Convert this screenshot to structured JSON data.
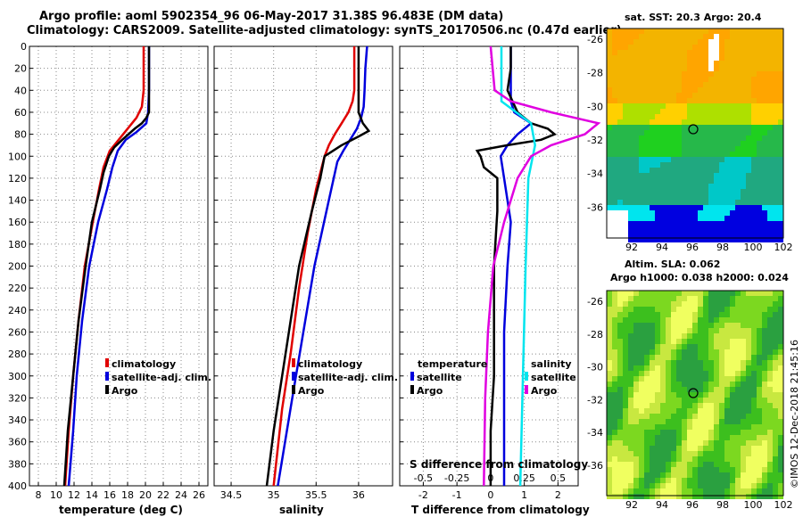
{
  "header": {
    "title_line1": "Argo profile: aoml 5902354_96 06-May-2017 31.38S 96.483E (DM data)",
    "title_line2": "Climatology: CARS2009. Satellite-adjusted climatology: synTS_20170506.nc (0.47d earlier)"
  },
  "colors": {
    "climatology": "#e00000",
    "satellite": "#0000dd",
    "argo": "#000000",
    "sat_cyan": "#00e5ee",
    "argo_magenta": "#e000e0"
  },
  "chart_data": [
    {
      "id": "temperature",
      "type": "line",
      "xlabel": "temperature (deg C)",
      "ylabel": "",
      "xlim": [
        7,
        27
      ],
      "ylim": [
        400,
        0
      ],
      "xticks": [
        8,
        10,
        12,
        14,
        16,
        18,
        20,
        22,
        24,
        26
      ],
      "xtick_labels": [
        "8",
        "10",
        "12",
        "14",
        "16",
        "18",
        "20",
        "22",
        "24",
        "26"
      ],
      "yticks": [
        0,
        20,
        40,
        60,
        80,
        100,
        120,
        140,
        160,
        180,
        200,
        220,
        240,
        260,
        280,
        300,
        320,
        340,
        360,
        380,
        400
      ],
      "ytick_labels": [
        "0",
        "20",
        "40",
        "60",
        "80",
        "100",
        "120",
        "140",
        "160",
        "180",
        "200",
        "220",
        "240",
        "260",
        "280",
        "300",
        "320",
        "340",
        "360",
        "380",
        "400"
      ],
      "grid": true,
      "legend": [
        "climatology",
        "satellite-adj. clim.",
        "Argo"
      ],
      "legend_placement": "lower-right",
      "series": [
        {
          "name": "climatology",
          "depth": [
            0,
            20,
            40,
            55,
            65,
            75,
            85,
            95,
            110,
            130,
            160,
            200,
            250,
            300,
            350,
            400
          ],
          "values": [
            19.8,
            19.8,
            19.8,
            19.6,
            19.0,
            18.0,
            17.0,
            16.0,
            15.3,
            14.8,
            14.1,
            13.2,
            12.5,
            11.9,
            11.4,
            11.0
          ]
        },
        {
          "name": "satellite-adj. clim.",
          "depth": [
            0,
            20,
            40,
            60,
            70,
            78,
            85,
            95,
            110,
            130,
            160,
            200,
            250,
            300,
            350,
            400
          ],
          "values": [
            20.4,
            20.4,
            20.4,
            20.3,
            20.1,
            19.0,
            17.8,
            16.9,
            16.3,
            15.7,
            14.7,
            13.7,
            12.9,
            12.3,
            11.9,
            11.4
          ]
        },
        {
          "name": "Argo",
          "depth": [
            0,
            20,
            40,
            60,
            65,
            70,
            75,
            85,
            92,
            100,
            115,
            130,
            160,
            200,
            250,
            300,
            350,
            400
          ],
          "values": [
            20.4,
            20.4,
            20.4,
            20.4,
            20.1,
            19.6,
            18.8,
            17.4,
            16.5,
            15.9,
            15.3,
            14.9,
            14.0,
            13.3,
            12.5,
            11.9,
            11.3,
            10.9
          ]
        }
      ]
    },
    {
      "id": "salinity",
      "type": "line",
      "xlabel": "salinity",
      "xlim": [
        34.3,
        36.4
      ],
      "ylim": [
        400,
        0
      ],
      "xticks": [
        34.5,
        35,
        35.5,
        36
      ],
      "xtick_labels": [
        "34.5",
        "35",
        "35.5",
        "36"
      ],
      "grid": true,
      "legend": [
        "climatology",
        "satellite-adj. clim.",
        "Argo"
      ],
      "legend_placement": "lower-right",
      "series": [
        {
          "name": "climatology",
          "depth": [
            0,
            20,
            40,
            50,
            60,
            70,
            80,
            90,
            100,
            130,
            170,
            220,
            280,
            330,
            400
          ],
          "values": [
            35.95,
            35.95,
            35.95,
            35.93,
            35.88,
            35.8,
            35.72,
            35.65,
            35.6,
            35.5,
            35.4,
            35.3,
            35.2,
            35.1,
            35.0
          ]
        },
        {
          "name": "satellite-adj. clim.",
          "depth": [
            0,
            20,
            40,
            55,
            65,
            75,
            85,
            95,
            105,
            140,
            200,
            260,
            320,
            400
          ],
          "values": [
            36.1,
            36.08,
            36.07,
            36.06,
            36.03,
            35.98,
            35.9,
            35.82,
            35.75,
            35.65,
            35.48,
            35.35,
            35.22,
            35.05
          ]
        },
        {
          "name": "Argo",
          "depth": [
            0,
            20,
            40,
            60,
            70,
            77,
            82,
            90,
            100,
            120,
            150,
            200,
            250,
            300,
            350,
            400
          ],
          "values": [
            36.0,
            36.0,
            36.0,
            36.0,
            36.05,
            36.12,
            36.0,
            35.8,
            35.6,
            35.55,
            35.45,
            35.3,
            35.2,
            35.1,
            35.0,
            34.92
          ]
        }
      ]
    },
    {
      "id": "difference",
      "type": "line",
      "xlabel": "T difference from climatology",
      "xlabel_top": "S difference from climatology",
      "xlim": [
        -2.7,
        2.6
      ],
      "ylim": [
        400,
        0
      ],
      "xticks": [
        -2,
        -1,
        0,
        1,
        2
      ],
      "xtick_labels": [
        "-2",
        "-1",
        "0",
        "1",
        "2"
      ],
      "xticks_top": [
        -0.5,
        -0.25,
        0,
        0.25,
        0.5
      ],
      "xtick_labels_top": [
        "-0.5",
        "-0.25",
        "0",
        "0.25",
        "0.5"
      ],
      "grid": true,
      "legend_left_title": "temperature",
      "legend_right_title": "salinity",
      "legend_left": [
        "satellite",
        "Argo"
      ],
      "legend_right": [
        "satellite",
        "Argo"
      ],
      "series": [
        {
          "name": "temperature satellite",
          "depth": [
            0,
            50,
            60,
            70,
            80,
            90,
            100,
            120,
            160,
            200,
            260,
            320,
            400
          ],
          "values": [
            0.6,
            0.6,
            0.7,
            1.2,
            0.8,
            0.5,
            0.3,
            0.4,
            0.6,
            0.5,
            0.4,
            0.4,
            0.4
          ]
        },
        {
          "name": "temperature Argo",
          "depth": [
            0,
            20,
            40,
            60,
            70,
            75,
            80,
            85,
            90,
            95,
            100,
            110,
            120,
            150,
            200,
            250,
            300,
            350,
            400
          ],
          "values": [
            0.6,
            0.6,
            0.5,
            0.8,
            1.2,
            1.7,
            1.9,
            1.5,
            0.5,
            -0.4,
            -0.3,
            -0.2,
            0.2,
            0.2,
            0.1,
            0.1,
            0.1,
            0.0,
            0.0
          ]
        },
        {
          "name": "salinity satellite",
          "depth": [
            0,
            50,
            70,
            90,
            120,
            200,
            300,
            400
          ],
          "values": [
            0.08,
            0.08,
            0.3,
            0.33,
            0.28,
            0.26,
            0.24,
            0.22
          ]
        },
        {
          "name": "salinity Argo",
          "depth": [
            0,
            40,
            50,
            60,
            70,
            80,
            90,
            100,
            120,
            160,
            200,
            260,
            320,
            400
          ],
          "values": [
            0.0,
            0.03,
            0.15,
            0.45,
            0.8,
            0.7,
            0.45,
            0.3,
            0.2,
            0.1,
            0.02,
            -0.02,
            -0.04,
            -0.05
          ]
        }
      ]
    }
  ],
  "maps": {
    "sst": {
      "title": "sat. SST: 20.3 Argo: 20.4",
      "ylabels": [
        "-26",
        "-28",
        "-30",
        "-32",
        "-34",
        "-36"
      ],
      "xlabels": [
        "92",
        "94",
        "96",
        "98",
        "100",
        "102"
      ]
    },
    "sla": {
      "title_line1": "Altim. SLA: 0.062",
      "title_line2": "Argo h1000: 0.038 h2000: 0.024",
      "ylabels": [
        "-26",
        "-28",
        "-30",
        "-32",
        "-34",
        "-36"
      ],
      "xlabels": [
        "92",
        "94",
        "96",
        "98",
        "100",
        "102"
      ]
    }
  },
  "footer": {
    "credit": "©IMOS 12-Dec-2018 21:45:16"
  }
}
